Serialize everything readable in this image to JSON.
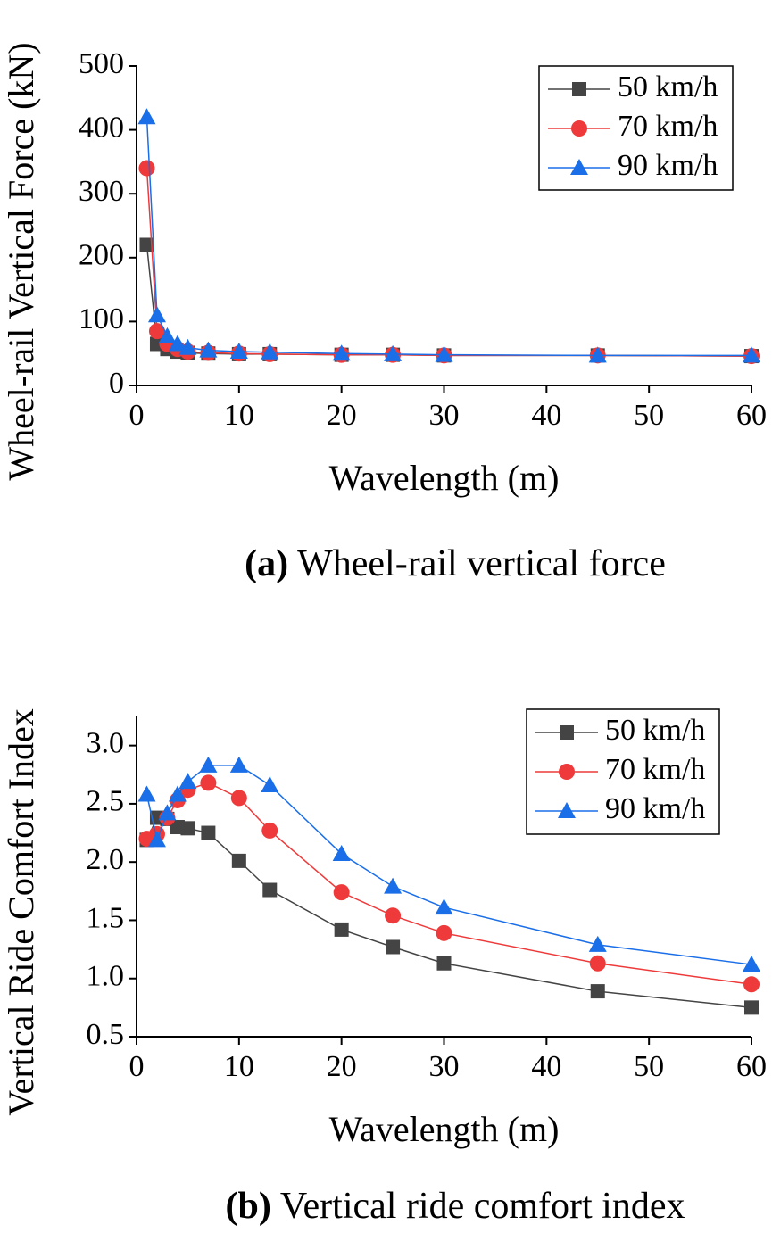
{
  "chart_data": [
    {
      "type": "line",
      "y_label": "Wheel-rail Vertical Force (kN)",
      "x_label": "Wavelength (m)",
      "caption_label": "(a)",
      "caption": "Wheel-rail vertical force",
      "x": [
        1,
        2,
        3,
        4,
        5,
        7,
        10,
        13,
        20,
        25,
        30,
        45,
        60
      ],
      "xlim": [
        0,
        60
      ],
      "xticks": [
        0,
        10,
        20,
        30,
        40,
        50,
        60
      ],
      "ylim": [
        0,
        500
      ],
      "yticks": [
        0,
        100,
        200,
        300,
        400,
        500
      ],
      "legend": "upper right",
      "series": [
        {
          "name": "50 km/h",
          "color": "#444444",
          "marker": "square",
          "values": [
            220,
            65,
            57,
            53,
            51,
            50,
            49,
            49,
            48,
            48,
            47,
            47,
            46
          ]
        },
        {
          "name": "70 km/h",
          "color": "#ee3a3a",
          "marker": "circle",
          "values": [
            340,
            85,
            65,
            57,
            53,
            51,
            50,
            49,
            48,
            48,
            47,
            47,
            46
          ]
        },
        {
          "name": "90 km/h",
          "color": "#1a6ee8",
          "marker": "triangle",
          "values": [
            420,
            110,
            77,
            65,
            59,
            55,
            53,
            52,
            50,
            49,
            48,
            47,
            47
          ]
        }
      ]
    },
    {
      "type": "line",
      "y_label": "Vertical Ride Comfort Index",
      "x_label": "Wavelength (m)",
      "caption_label": "(b)",
      "caption": "Vertical ride comfort index",
      "x": [
        1,
        2,
        3,
        4,
        5,
        7,
        10,
        13,
        20,
        25,
        30,
        45,
        60
      ],
      "xlim": [
        0,
        60
      ],
      "xticks": [
        0,
        10,
        20,
        30,
        40,
        50,
        60
      ],
      "ylim": [
        0.5,
        3.25
      ],
      "yticks": [
        0.5,
        {
          "value": 1,
          "label": "1.0"
        },
        1.5,
        {
          "value": 2,
          "label": "2.0"
        },
        2.5,
        {
          "value": 3,
          "label": "3.0"
        }
      ],
      "legend": "upper right",
      "series": [
        {
          "name": "50 km/h",
          "color": "#444444",
          "marker": "square",
          "values": [
            2.19,
            2.38,
            2.37,
            2.3,
            2.29,
            2.25,
            2.01,
            1.76,
            1.42,
            1.27,
            1.13,
            0.89,
            0.75
          ]
        },
        {
          "name": "70 km/h",
          "color": "#ee3a3a",
          "marker": "circle",
          "values": [
            2.2,
            2.24,
            2.38,
            2.53,
            2.62,
            2.68,
            2.55,
            2.27,
            1.74,
            1.54,
            1.39,
            1.13,
            0.95
          ]
        },
        {
          "name": "90 km/h",
          "color": "#1a6ee8",
          "marker": "triangle",
          "values": [
            2.58,
            2.19,
            2.42,
            2.58,
            2.69,
            2.83,
            2.83,
            2.66,
            2.07,
            1.79,
            1.61,
            1.29,
            1.12
          ]
        }
      ]
    }
  ]
}
